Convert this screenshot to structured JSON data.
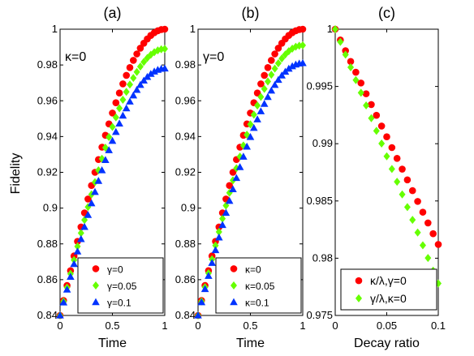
{
  "figure": {
    "ylabel": "Fidelity"
  },
  "chart_data": [
    {
      "type": "scatter",
      "title": "(a)",
      "annotation": "κ=0",
      "xlabel": "Time",
      "ylabel": "Fidelity",
      "xlim": [
        0,
        1
      ],
      "ylim": [
        0.84,
        1.0
      ],
      "xticks": [
        "0",
        "0.5",
        "1"
      ],
      "yticks": [
        "0.84",
        "0.86",
        "0.88",
        "0.9",
        "0.92",
        "0.94",
        "0.96",
        "0.98",
        "1"
      ],
      "legend_position": "bottom-right",
      "series": [
        {
          "name": "γ=0",
          "color": "#ff0000",
          "marker": "circle",
          "final": 1.0
        },
        {
          "name": "γ=0.05",
          "color": "#66ff00",
          "marker": "diamond",
          "final": 0.989
        },
        {
          "name": "γ=0.1",
          "color": "#0033ff",
          "marker": "triangle",
          "final": 0.978
        }
      ]
    },
    {
      "type": "scatter",
      "title": "(b)",
      "annotation": "γ=0",
      "xlabel": "Time",
      "xlim": [
        0,
        1
      ],
      "ylim": [
        0.84,
        1.0
      ],
      "xticks": [
        "0",
        "0.5",
        "1"
      ],
      "yticks": [
        "0.84",
        "0.86",
        "0.88",
        "0.9",
        "0.92",
        "0.94",
        "0.96",
        "0.98",
        "1"
      ],
      "legend_position": "bottom-right",
      "series": [
        {
          "name": "κ=0",
          "color": "#ff0000",
          "marker": "circle",
          "final": 1.0
        },
        {
          "name": "κ=0.05",
          "color": "#66ff00",
          "marker": "diamond",
          "final": 0.991
        },
        {
          "name": "κ=0.1",
          "color": "#0033ff",
          "marker": "triangle",
          "final": 0.981
        }
      ]
    },
    {
      "type": "scatter",
      "title": "(c)",
      "xlabel": "Decay ratio",
      "xlim": [
        0,
        0.1
      ],
      "ylim": [
        0.975,
        1.0
      ],
      "xticks": [
        "0",
        "0.05",
        "0.1"
      ],
      "yticks": [
        "0.975",
        "0.98",
        "0.985",
        "0.99",
        "0.995",
        "1"
      ],
      "legend_position": "bottom-right",
      "series": [
        {
          "name": "κ/λ,γ=0",
          "color": "#ff0000",
          "marker": "circle",
          "final": 0.9812
        },
        {
          "name": "γ/λ,κ=0",
          "color": "#66ff00",
          "marker": "diamond",
          "final": 0.9778
        }
      ]
    }
  ]
}
